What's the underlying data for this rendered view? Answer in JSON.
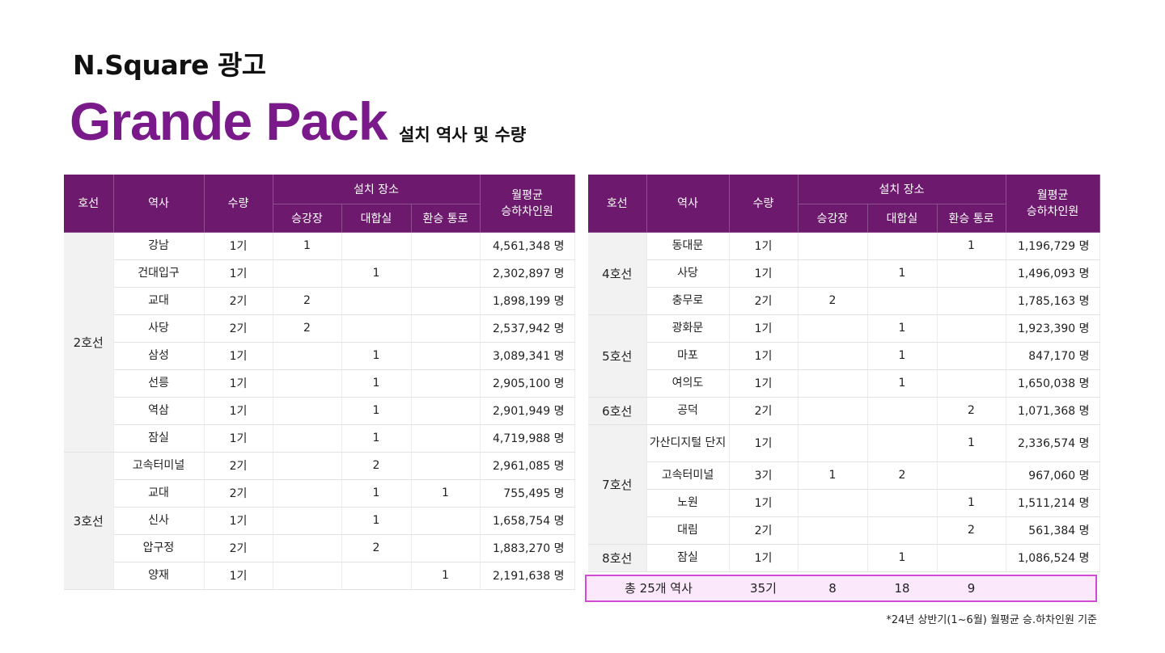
{
  "header": {
    "brand": "N.Square 광고",
    "title": "Grande Pack",
    "subtitle": "설치 역사 및 수량"
  },
  "columns": {
    "line": "호선",
    "station": "역사",
    "qty": "수량",
    "install_place": "설치 장소",
    "platform": "승강장",
    "concourse": "대합실",
    "transfer": "환승 통로",
    "avg_line1": "월평균",
    "avg_line2": "승하차인원"
  },
  "left_table": [
    {
      "line": "2호선",
      "rows": [
        {
          "station": "강남",
          "qty": "1기",
          "platform": "1",
          "concourse": "",
          "transfer": "",
          "avg": "4,561,348 명"
        },
        {
          "station": "건대입구",
          "qty": "1기",
          "platform": "",
          "concourse": "1",
          "transfer": "",
          "avg": "2,302,897 명"
        },
        {
          "station": "교대",
          "qty": "2기",
          "platform": "2",
          "concourse": "",
          "transfer": "",
          "avg": "1,898,199 명"
        },
        {
          "station": "사당",
          "qty": "2기",
          "platform": "2",
          "concourse": "",
          "transfer": "",
          "avg": "2,537,942 명"
        },
        {
          "station": "삼성",
          "qty": "1기",
          "platform": "",
          "concourse": "1",
          "transfer": "",
          "avg": "3,089,341 명"
        },
        {
          "station": "선릉",
          "qty": "1기",
          "platform": "",
          "concourse": "1",
          "transfer": "",
          "avg": "2,905,100 명"
        },
        {
          "station": "역삼",
          "qty": "1기",
          "platform": "",
          "concourse": "1",
          "transfer": "",
          "avg": "2,901,949 명"
        },
        {
          "station": "잠실",
          "qty": "1기",
          "platform": "",
          "concourse": "1",
          "transfer": "",
          "avg": "4,719,988 명"
        }
      ]
    },
    {
      "line": "3호선",
      "rows": [
        {
          "station": "고속터미널",
          "qty": "2기",
          "platform": "",
          "concourse": "2",
          "transfer": "",
          "avg": "2,961,085 명"
        },
        {
          "station": "교대",
          "qty": "2기",
          "platform": "",
          "concourse": "1",
          "transfer": "1",
          "avg": "755,495 명"
        },
        {
          "station": "신사",
          "qty": "1기",
          "platform": "",
          "concourse": "1",
          "transfer": "",
          "avg": "1,658,754 명"
        },
        {
          "station": "압구정",
          "qty": "2기",
          "platform": "",
          "concourse": "2",
          "transfer": "",
          "avg": "1,883,270 명"
        },
        {
          "station": "양재",
          "qty": "1기",
          "platform": "",
          "concourse": "",
          "transfer": "1",
          "avg": "2,191,638 명"
        }
      ]
    }
  ],
  "right_table": [
    {
      "line": "4호선",
      "rows": [
        {
          "station": "동대문",
          "qty": "1기",
          "platform": "",
          "concourse": "",
          "transfer": "1",
          "avg": "1,196,729 명"
        },
        {
          "station": "사당",
          "qty": "1기",
          "platform": "",
          "concourse": "1",
          "transfer": "",
          "avg": "1,496,093 명"
        },
        {
          "station": "충무로",
          "qty": "2기",
          "platform": "2",
          "concourse": "",
          "transfer": "",
          "avg": "1,785,163 명"
        }
      ]
    },
    {
      "line": "5호선",
      "rows": [
        {
          "station": "광화문",
          "qty": "1기",
          "platform": "",
          "concourse": "1",
          "transfer": "",
          "avg": "1,923,390 명"
        },
        {
          "station": "마포",
          "qty": "1기",
          "platform": "",
          "concourse": "1",
          "transfer": "",
          "avg": "847,170 명"
        },
        {
          "station": "여의도",
          "qty": "1기",
          "platform": "",
          "concourse": "1",
          "transfer": "",
          "avg": "1,650,038 명"
        }
      ]
    },
    {
      "line": "6호선",
      "rows": [
        {
          "station": "공덕",
          "qty": "2기",
          "platform": "",
          "concourse": "",
          "transfer": "2",
          "avg": "1,071,368 명"
        }
      ]
    },
    {
      "line": "7호선",
      "rows": [
        {
          "station": "가산디지털 단지",
          "qty": "1기",
          "platform": "",
          "concourse": "",
          "transfer": "1",
          "avg": "2,336,574 명",
          "tall": true
        },
        {
          "station": "고속터미널",
          "qty": "3기",
          "platform": "1",
          "concourse": "2",
          "transfer": "",
          "avg": "967,060 명"
        },
        {
          "station": "노원",
          "qty": "1기",
          "platform": "",
          "concourse": "",
          "transfer": "1",
          "avg": "1,511,214 명"
        },
        {
          "station": "대림",
          "qty": "2기",
          "platform": "",
          "concourse": "",
          "transfer": "2",
          "avg": "561,384 명"
        }
      ]
    },
    {
      "line": "8호선",
      "rows": [
        {
          "station": "잠실",
          "qty": "1기",
          "platform": "",
          "concourse": "1",
          "transfer": "",
          "avg": "1,086,524 명"
        }
      ]
    }
  ],
  "total": {
    "label": "총 25개 역사",
    "qty": "35기",
    "platform": "8",
    "concourse": "18",
    "transfer": "9"
  },
  "footnote": "*24년 상반기(1~6월) 월평균 승.하차인원 기준",
  "colors": {
    "header_bg": "#6d1a6e",
    "title": "#7a1a8a",
    "total_border": "#d24ad8",
    "total_bg": "#fbe8fb"
  }
}
